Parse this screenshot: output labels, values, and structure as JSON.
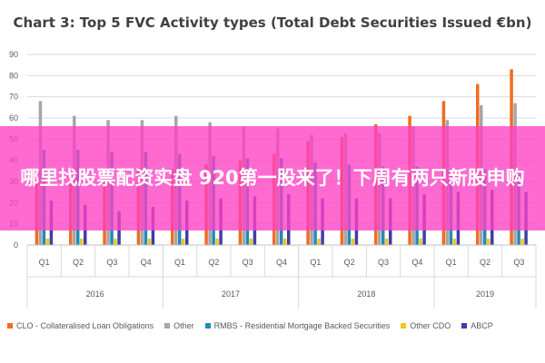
{
  "chart_data": {
    "type": "bar",
    "title": "Chart 3: Top 5 FVC Activity types (Total Debt Securities Issued €bn)",
    "ylim": [
      0,
      90
    ],
    "yticks": [
      "0",
      "10",
      "20",
      "30",
      "40",
      "50",
      "60",
      "70",
      "80",
      "90"
    ],
    "grid": true,
    "legend_position": "bottom",
    "groups": [
      {
        "label": "2016",
        "quarters": [
          "Q1",
          "Q2",
          "Q3",
          "Q4"
        ]
      },
      {
        "label": "2017",
        "quarters": [
          "Q1",
          "Q2",
          "Q3",
          "Q4"
        ]
      },
      {
        "label": "2018",
        "quarters": [
          "Q1",
          "Q2",
          "Q3",
          "Q4"
        ]
      },
      {
        "label": "2019",
        "quarters": [
          "Q1",
          "Q2",
          "Q3"
        ]
      }
    ],
    "series": [
      {
        "name": "CLO - Collateralised Loan Obligations",
        "color": "#f26b21",
        "values": [
          30,
          32,
          33,
          35,
          36,
          38,
          40,
          43,
          49,
          51,
          57,
          61,
          68,
          76,
          83
        ]
      },
      {
        "name": "Other",
        "color": "#a6a6a6",
        "values": [
          68,
          61,
          59,
          59,
          61,
          58,
          56,
          55,
          52,
          53,
          53,
          56,
          59,
          66,
          67
        ]
      },
      {
        "name": "RMBS - Residential Mortgage Backed Securities",
        "color": "#1f8bb8",
        "values": [
          45,
          45,
          44,
          44,
          43,
          42,
          41,
          41,
          39,
          38,
          37,
          37,
          36,
          36,
          35
        ]
      },
      {
        "name": "Other CDO",
        "color": "#f5c51c",
        "values": [
          3,
          3,
          3,
          3,
          3,
          3,
          3,
          3,
          3,
          3,
          3,
          3,
          3,
          3,
          3
        ]
      },
      {
        "name": "ABCP",
        "color": "#3b3fa8",
        "values": [
          21,
          19,
          16,
          18,
          21,
          22,
          23,
          24,
          22,
          22,
          22,
          24,
          25,
          26,
          25
        ]
      }
    ]
  },
  "banner": {
    "text": "哪里找股票配资实盘 920第一股来了！下周有两只新股申购"
  }
}
